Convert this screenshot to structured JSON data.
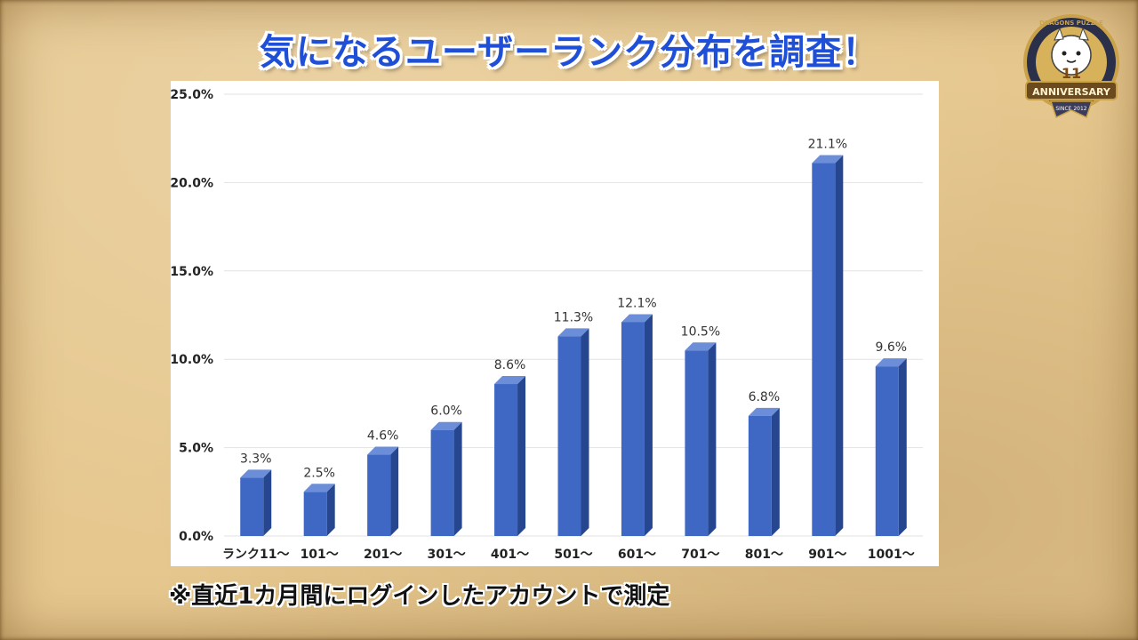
{
  "title": "気になるユーザーランク分布を調査！",
  "footnote": "※直近1カ月間にログインしたアカウントで測定",
  "logo": {
    "icon": "anniversary-badge-icon",
    "text_ring": "DRAGONS PUZZLE",
    "banner": "ANNIVERSARY",
    "since": "SINCE 2012",
    "number": "11"
  },
  "colors": {
    "title": "#1f4fd6",
    "bar_front": "#3f68c4",
    "bar_side": "#26478f",
    "bar_top": "#6c8ed8"
  },
  "chart_data": {
    "type": "bar",
    "categories": [
      "ランク11〜",
      "101〜",
      "201〜",
      "301〜",
      "401〜",
      "501〜",
      "601〜",
      "701〜",
      "801〜",
      "901〜",
      "1001〜"
    ],
    "values": [
      3.3,
      2.5,
      4.6,
      6.0,
      8.6,
      11.3,
      12.1,
      10.5,
      6.8,
      21.1,
      9.6
    ],
    "data_labels": [
      "3.3%",
      "2.5%",
      "4.6%",
      "6.0%",
      "8.6%",
      "11.3%",
      "12.1%",
      "10.5%",
      "6.8%",
      "21.1%",
      "9.6%"
    ],
    "y_ticks": [
      0,
      5,
      10,
      15,
      20,
      25
    ],
    "y_tick_labels": [
      "0.0%",
      "5.0%",
      "10.0%",
      "15.0%",
      "20.0%",
      "25.0%"
    ],
    "ylim": [
      0,
      25
    ],
    "grid": true,
    "title": "",
    "xlabel": "",
    "ylabel": ""
  }
}
